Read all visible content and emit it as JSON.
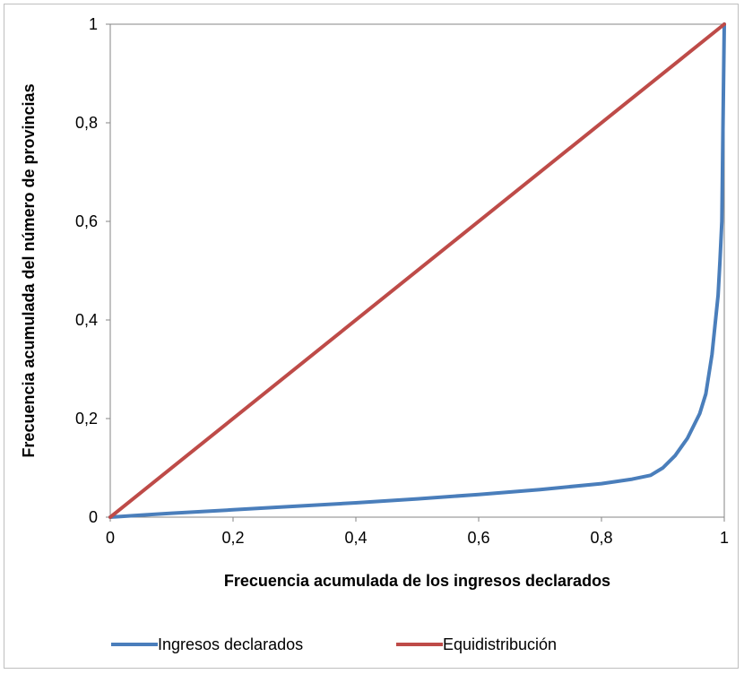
{
  "chart_data": {
    "type": "line",
    "title": "",
    "xlabel": "Frecuencia acumulada de los ingresos declarados",
    "ylabel": "Frecuencia  acumulada del número de provincias",
    "xlim": [
      0,
      1
    ],
    "ylim": [
      0,
      1
    ],
    "x_ticks": [
      0,
      0.2,
      0.4,
      0.6,
      0.8,
      1
    ],
    "y_ticks": [
      0,
      0.2,
      0.4,
      0.6,
      0.8,
      1
    ],
    "x_tick_labels": [
      "0",
      "0,2",
      "0,4",
      "0,6",
      "0,8",
      "1"
    ],
    "y_tick_labels": [
      "0",
      "0,2",
      "0,4",
      "0,6",
      "0,8",
      "1"
    ],
    "grid": false,
    "legend_position": "bottom",
    "series": [
      {
        "name": "Ingresos declarados",
        "color": "#4a7ebb",
        "x": [
          0,
          0.05,
          0.1,
          0.2,
          0.3,
          0.4,
          0.5,
          0.6,
          0.7,
          0.8,
          0.85,
          0.88,
          0.9,
          0.92,
          0.94,
          0.96,
          0.97,
          0.98,
          0.99,
          0.993,
          0.996,
          0.998,
          1.0
        ],
        "y": [
          0,
          0.004,
          0.008,
          0.015,
          0.022,
          0.029,
          0.037,
          0.046,
          0.056,
          0.068,
          0.077,
          0.085,
          0.1,
          0.125,
          0.16,
          0.21,
          0.25,
          0.33,
          0.45,
          0.52,
          0.6,
          0.8,
          1.0
        ]
      },
      {
        "name": "Equidistribución",
        "color": "#be4b48",
        "x": [
          0,
          1
        ],
        "y": [
          0,
          1
        ]
      }
    ]
  }
}
